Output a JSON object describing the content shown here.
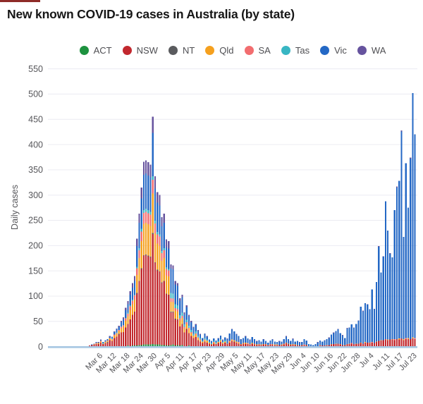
{
  "page": {
    "title": "New known COVID-19 cases in Australia (by state)"
  },
  "colors": {
    "background": "#ffffff",
    "gridline": "#ececf2",
    "baseline": "#a6c7e2",
    "axis_text": "#56565a",
    "title_text": "#161616",
    "top_strip": "#8e2b28"
  },
  "chart_data": {
    "type": "bar",
    "stacked": true,
    "title": "New known COVID-19 cases in Australia (by state)",
    "xlabel": "",
    "ylabel": "Daily cases",
    "ylim": [
      0,
      550
    ],
    "yticks": [
      0,
      50,
      100,
      150,
      200,
      250,
      300,
      350,
      400,
      450,
      500,
      550
    ],
    "grid": true,
    "legend_position": "top",
    "x_tick_labels": [
      "Mar 6",
      "Mar 12",
      "Mar 18",
      "Mar 24",
      "Mar 30",
      "Apr 5",
      "Apr 11",
      "Apr 17",
      "Apr 23",
      "Apr 29",
      "May 5",
      "May 11",
      "May 17",
      "May 23",
      "May 29",
      "Jun 4",
      "Jun 10",
      "Jun 16",
      "Jun 22",
      "Jun 28",
      "Jul 4",
      "Jul 11",
      "Jul 17",
      "Jul 23"
    ],
    "dates": [
      "Mar 1",
      "Mar 2",
      "Mar 3",
      "Mar 4",
      "Mar 5",
      "Mar 6",
      "Mar 7",
      "Mar 8",
      "Mar 9",
      "Mar 10",
      "Mar 11",
      "Mar 12",
      "Mar 13",
      "Mar 14",
      "Mar 15",
      "Mar 16",
      "Mar 17",
      "Mar 18",
      "Mar 19",
      "Mar 20",
      "Mar 21",
      "Mar 22",
      "Mar 23",
      "Mar 24",
      "Mar 25",
      "Mar 26",
      "Mar 27",
      "Mar 28",
      "Mar 29",
      "Mar 30",
      "Mar 31",
      "Apr 1",
      "Apr 2",
      "Apr 3",
      "Apr 4",
      "Apr 5",
      "Apr 6",
      "Apr 7",
      "Apr 8",
      "Apr 9",
      "Apr 10",
      "Apr 11",
      "Apr 12",
      "Apr 13",
      "Apr 14",
      "Apr 15",
      "Apr 16",
      "Apr 17",
      "Apr 18",
      "Apr 19",
      "Apr 20",
      "Apr 21",
      "Apr 22",
      "Apr 23",
      "Apr 24",
      "Apr 25",
      "Apr 26",
      "Apr 27",
      "Apr 28",
      "Apr 29",
      "Apr 30",
      "May 1",
      "May 2",
      "May 3",
      "May 4",
      "May 5",
      "May 6",
      "May 7",
      "May 8",
      "May 9",
      "May 10",
      "May 11",
      "May 12",
      "May 13",
      "May 14",
      "May 15",
      "May 16",
      "May 17",
      "May 18",
      "May 19",
      "May 20",
      "May 21",
      "May 22",
      "May 23",
      "May 24",
      "May 25",
      "May 26",
      "May 27",
      "May 28",
      "May 29",
      "May 30",
      "May 31",
      "Jun 1",
      "Jun 2",
      "Jun 3",
      "Jun 4",
      "Jun 5",
      "Jun 6",
      "Jun 7",
      "Jun 8",
      "Jun 9",
      "Jun 10",
      "Jun 11",
      "Jun 12",
      "Jun 13",
      "Jun 14",
      "Jun 15",
      "Jun 16",
      "Jun 17",
      "Jun 18",
      "Jun 19",
      "Jun 20",
      "Jun 21",
      "Jun 22",
      "Jun 23",
      "Jun 24",
      "Jun 25",
      "Jun 26",
      "Jun 27",
      "Jun 28",
      "Jun 29",
      "Jun 30",
      "Jul 1",
      "Jul 2",
      "Jul 3",
      "Jul 4",
      "Jul 5",
      "Jul 6",
      "Jul 7",
      "Jul 8",
      "Jul 9",
      "Jul 10",
      "Jul 11",
      "Jul 12",
      "Jul 13",
      "Jul 14",
      "Jul 15",
      "Jul 16",
      "Jul 17",
      "Jul 18",
      "Jul 19",
      "Jul 20",
      "Jul 21",
      "Jul 22",
      "Jul 23"
    ],
    "series": [
      {
        "name": "ACT",
        "color": "#1d923f",
        "values": [
          0,
          0,
          0,
          0,
          0,
          0,
          0,
          0,
          0,
          1,
          0,
          1,
          0,
          1,
          0,
          1,
          1,
          2,
          1,
          2,
          2,
          2,
          3,
          3,
          4,
          4,
          4,
          4,
          5,
          4,
          4,
          4,
          3,
          3,
          2,
          2,
          3,
          4,
          2,
          3,
          2,
          3,
          1,
          1,
          2,
          1,
          1,
          1,
          0,
          0,
          0,
          0,
          0,
          0,
          0,
          0,
          0,
          0,
          0,
          0,
          1,
          0,
          0,
          0,
          0,
          0,
          0,
          0,
          1,
          0,
          0,
          0,
          0,
          0,
          0,
          0,
          0,
          0,
          0,
          0,
          0,
          0,
          0,
          0,
          0,
          0,
          0,
          0,
          0,
          0,
          0,
          0,
          0,
          0,
          0,
          0,
          0,
          0,
          0,
          0,
          0,
          0,
          0,
          0,
          0,
          0,
          0,
          0,
          0,
          0,
          0,
          0,
          0,
          0,
          0,
          0,
          0,
          0,
          0,
          0,
          0,
          0,
          0,
          0,
          0,
          0,
          0,
          0,
          0,
          0,
          0,
          0,
          0,
          0,
          0,
          0,
          0,
          0,
          0,
          0,
          0,
          0,
          0,
          0,
          0
        ]
      },
      {
        "name": "NSW",
        "color": "#c2282e",
        "values": [
          2,
          3,
          4,
          5,
          5,
          8,
          5,
          7,
          8,
          12,
          11,
          16,
          20,
          23,
          28,
          28,
          37,
          43,
          53,
          61,
          67,
          103,
          126,
          151,
          176,
          177,
          175,
          173,
          218,
          162,
          147,
          144,
          123,
          126,
          102,
          100,
          65,
          64,
          52,
          50,
          38,
          41,
          27,
          33,
          25,
          20,
          16,
          18,
          13,
          10,
          7,
          10,
          8,
          6,
          4,
          6,
          5,
          7,
          9,
          6,
          7,
          5,
          8,
          11,
          9,
          8,
          6,
          4,
          5,
          6,
          5,
          4,
          6,
          4,
          3,
          4,
          3,
          4,
          4,
          2,
          4,
          4,
          3,
          3,
          3,
          3,
          4,
          7,
          4,
          3,
          4,
          3,
          2,
          2,
          2,
          3,
          2,
          1,
          1,
          1,
          1,
          1,
          2,
          2,
          2,
          2,
          3,
          4,
          5,
          5,
          6,
          4,
          3,
          2,
          5,
          5,
          6,
          5,
          5,
          6,
          7,
          6,
          8,
          8,
          7,
          8,
          7,
          9,
          11,
          12,
          13,
          14,
          13,
          14,
          14,
          13,
          15,
          14,
          16,
          13,
          15,
          15,
          15,
          16,
          15
        ]
      },
      {
        "name": "NT",
        "color": "#5a5b5e",
        "values": [
          0,
          0,
          0,
          0,
          0,
          0,
          0,
          0,
          1,
          0,
          0,
          0,
          0,
          1,
          0,
          0,
          0,
          0,
          0,
          0,
          0,
          1,
          1,
          1,
          1,
          1,
          1,
          1,
          2,
          1,
          1,
          1,
          1,
          1,
          1,
          1,
          1,
          1,
          1,
          1,
          0,
          1,
          0,
          1,
          0,
          0,
          0,
          0,
          0,
          0,
          0,
          0,
          0,
          0,
          0,
          0,
          0,
          0,
          0,
          0,
          0,
          0,
          0,
          0,
          1,
          0,
          0,
          0,
          0,
          0,
          0,
          0,
          0,
          0,
          0,
          0,
          0,
          0,
          0,
          0,
          0,
          0,
          0,
          0,
          0,
          0,
          0,
          0,
          1,
          0,
          0,
          0,
          0,
          0,
          0,
          0,
          0,
          0,
          0,
          0,
          0,
          0,
          0,
          0,
          0,
          0,
          0,
          0,
          0,
          0,
          0,
          0,
          0,
          0,
          0,
          0,
          0,
          0,
          0,
          0,
          0,
          0,
          0,
          0,
          0,
          0,
          0,
          0,
          0,
          0,
          0,
          0,
          0,
          0,
          0,
          0,
          0,
          0,
          0,
          0,
          0,
          0,
          0,
          0,
          0
        ]
      },
      {
        "name": "Qld",
        "color": "#f5a01e",
        "values": [
          0,
          0,
          1,
          1,
          2,
          2,
          1,
          2,
          2,
          3,
          3,
          5,
          5,
          6,
          8,
          10,
          13,
          15,
          19,
          21,
          24,
          36,
          45,
          54,
          62,
          63,
          62,
          61,
          78,
          57,
          52,
          51,
          43,
          45,
          36,
          36,
          20,
          19,
          16,
          15,
          12,
          12,
          8,
          10,
          8,
          6,
          4,
          5,
          4,
          3,
          2,
          3,
          3,
          2,
          1,
          2,
          1,
          2,
          3,
          2,
          2,
          1,
          2,
          3,
          2,
          2,
          2,
          1,
          1,
          2,
          1,
          1,
          1,
          1,
          1,
          1,
          1,
          1,
          1,
          1,
          0,
          1,
          1,
          1,
          0,
          1,
          1,
          1,
          1,
          1,
          1,
          1,
          1,
          0,
          1,
          0,
          1,
          0,
          0,
          0,
          0,
          0,
          1,
          0,
          0,
          1,
          0,
          1,
          0,
          1,
          0,
          1,
          0,
          1,
          0,
          1,
          0,
          0,
          1,
          0,
          1,
          0,
          1,
          0,
          1,
          0,
          0,
          1,
          0,
          1,
          0,
          0,
          1,
          0,
          1,
          0,
          0,
          2,
          0,
          2,
          0,
          2,
          0,
          2,
          0
        ]
      },
      {
        "name": "SA",
        "color": "#f26d6f",
        "values": [
          0,
          0,
          0,
          1,
          0,
          1,
          0,
          1,
          1,
          1,
          1,
          2,
          2,
          2,
          3,
          3,
          5,
          5,
          7,
          7,
          8,
          13,
          16,
          19,
          22,
          22,
          22,
          22,
          27,
          20,
          18,
          18,
          15,
          16,
          13,
          12,
          7,
          7,
          5,
          5,
          4,
          4,
          3,
          3,
          2,
          2,
          1,
          2,
          1,
          1,
          1,
          1,
          1,
          0,
          0,
          1,
          0,
          0,
          1,
          0,
          0,
          0,
          1,
          0,
          1,
          0,
          1,
          0,
          0,
          0,
          1,
          0,
          0,
          1,
          0,
          0,
          0,
          0,
          0,
          0,
          1,
          0,
          0,
          0,
          0,
          0,
          1,
          0,
          0,
          0,
          0,
          0,
          0,
          0,
          0,
          1,
          0,
          0,
          0,
          0,
          0,
          0,
          0,
          0,
          0,
          0,
          0,
          0,
          0,
          0,
          0,
          0,
          0,
          0,
          0,
          0,
          1,
          0,
          0,
          0,
          0,
          0,
          0,
          0,
          0,
          1,
          0,
          0,
          0,
          0,
          0,
          1,
          0,
          0,
          0,
          2,
          0,
          0,
          0,
          0,
          2,
          0,
          0,
          0,
          2
        ]
      },
      {
        "name": "Tas",
        "color": "#38b6c3",
        "values": [
          0,
          0,
          0,
          0,
          0,
          0,
          1,
          0,
          0,
          0,
          1,
          0,
          1,
          0,
          1,
          1,
          1,
          2,
          2,
          2,
          2,
          3,
          4,
          5,
          5,
          6,
          6,
          6,
          7,
          5,
          5,
          4,
          4,
          4,
          3,
          3,
          10,
          10,
          8,
          8,
          6,
          6,
          5,
          5,
          4,
          4,
          3,
          4,
          3,
          3,
          2,
          3,
          2,
          2,
          2,
          2,
          2,
          2,
          2,
          1,
          2,
          0,
          0,
          0,
          0,
          0,
          0,
          0,
          0,
          0,
          0,
          0,
          1,
          0,
          0,
          0,
          0,
          0,
          0,
          0,
          0,
          0,
          0,
          0,
          0,
          0,
          0,
          0,
          0,
          0,
          0,
          0,
          0,
          0,
          0,
          0,
          0,
          0,
          0,
          0,
          0,
          0,
          0,
          0,
          0,
          0,
          0,
          0,
          0,
          0,
          0,
          0,
          0,
          0,
          0,
          0,
          0,
          0,
          0,
          0,
          0,
          0,
          0,
          0,
          0,
          0,
          0,
          0,
          0,
          0,
          0,
          0,
          0,
          0,
          0,
          0,
          0,
          0,
          0,
          0,
          0,
          0,
          0,
          0,
          0
        ]
      },
      {
        "name": "Vic",
        "color": "#2468c5",
        "values": [
          0,
          1,
          1,
          2,
          1,
          2,
          2,
          2,
          3,
          3,
          3,
          5,
          6,
          6,
          8,
          11,
          15,
          17,
          21,
          24,
          27,
          41,
          50,
          60,
          70,
          70,
          69,
          68,
          86,
          64,
          58,
          57,
          49,
          50,
          40,
          40,
          49,
          48,
          39,
          38,
          29,
          31,
          20,
          25,
          19,
          15,
          12,
          13,
          10,
          7,
          5,
          8,
          6,
          4,
          4,
          5,
          4,
          5,
          7,
          4,
          6,
          9,
          15,
          20,
          17,
          14,
          12,
          9,
          10,
          12,
          9,
          8,
          11,
          9,
          6,
          8,
          6,
          9,
          6,
          5,
          7,
          9,
          6,
          5,
          7,
          6,
          9,
          12,
          9,
          7,
          10,
          6,
          8,
          6,
          6,
          11,
          9,
          4,
          3,
          2,
          4,
          7,
          9,
          8,
          10,
          12,
          14,
          19,
          22,
          25,
          28,
          22,
          19,
          14,
          31,
          32,
          37,
          32,
          39,
          45,
          71,
          64,
          77,
          75,
          66,
          104,
          67,
          118,
          187,
          134,
          165,
          273,
          216,
          170,
          162,
          255,
          300,
          312,
          410,
          202,
          346,
          258,
          357,
          484,
          403
        ]
      },
      {
        "name": "WA",
        "color": "#66539e",
        "values": [
          0,
          0,
          0,
          0,
          1,
          1,
          0,
          1,
          0,
          1,
          1,
          1,
          2,
          2,
          3,
          4,
          5,
          6,
          7,
          9,
          10,
          15,
          18,
          22,
          26,
          26,
          26,
          25,
          32,
          24,
          21,
          21,
          18,
          18,
          15,
          15,
          8,
          8,
          7,
          6,
          5,
          5,
          4,
          4,
          3,
          3,
          2,
          2,
          2,
          1,
          0,
          1,
          1,
          0,
          0,
          0,
          0,
          1,
          0,
          1,
          0,
          1,
          0,
          1,
          0,
          1,
          0,
          1,
          0,
          1,
          0,
          1,
          0,
          0,
          1,
          0,
          0,
          1,
          0,
          0,
          0,
          1,
          0,
          0,
          1,
          0,
          0,
          1,
          0,
          0,
          1,
          0,
          0,
          1,
          0,
          0,
          0,
          0,
          0,
          0,
          0,
          1,
          0,
          0,
          1,
          0,
          1,
          0,
          1,
          0,
          1,
          0,
          1,
          0,
          1,
          0,
          0,
          1,
          0,
          1,
          0,
          1,
          0,
          1,
          0,
          0,
          1,
          0,
          1,
          0,
          1,
          0,
          0,
          1,
          0,
          0,
          2,
          0,
          2,
          0,
          0,
          0,
          2,
          0,
          0
        ]
      }
    ]
  }
}
